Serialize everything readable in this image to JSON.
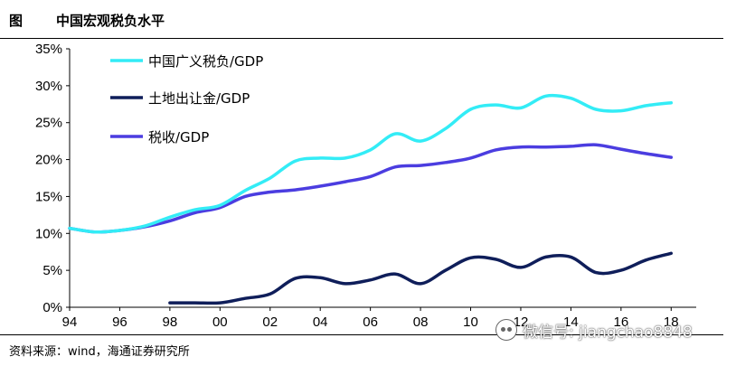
{
  "figure": {
    "label": "图",
    "title": "中国宏观税负水平",
    "source": "资料来源：wind，海通证券研究所"
  },
  "watermark": {
    "icon": "wechat-icon",
    "text": "微信号: jiangchao8848"
  },
  "chart_data": {
    "type": "line",
    "x_tick_labels": [
      "94",
      "96",
      "98",
      "00",
      "02",
      "04",
      "06",
      "08",
      "10",
      "12",
      "14",
      "16",
      "18"
    ],
    "x_ticks": [
      1994,
      1996,
      1998,
      2000,
      2002,
      2004,
      2006,
      2008,
      2010,
      2012,
      2014,
      2016,
      2018
    ],
    "xlim": [
      1994,
      2019
    ],
    "y_tick_labels": [
      "0%",
      "5%",
      "10%",
      "15%",
      "20%",
      "25%",
      "30%",
      "35%"
    ],
    "y_ticks": [
      0,
      5,
      10,
      15,
      20,
      25,
      30,
      35
    ],
    "ylim": [
      0,
      35
    ],
    "grid": false,
    "legend_position": "top-left",
    "series": [
      {
        "name": "中国广义税负/GDP",
        "color": "#33ECF6",
        "x": [
          1994,
          1995,
          1996,
          1997,
          1998,
          1999,
          2000,
          2001,
          2002,
          2003,
          2004,
          2005,
          2006,
          2007,
          2008,
          2009,
          2010,
          2011,
          2012,
          2013,
          2014,
          2015,
          2016,
          2017,
          2018
        ],
        "y": [
          10.7,
          10.2,
          10.4,
          11.0,
          12.2,
          13.2,
          13.8,
          15.8,
          17.5,
          19.8,
          20.2,
          20.2,
          21.3,
          23.5,
          22.5,
          24.2,
          26.8,
          27.4,
          27.0,
          28.6,
          28.3,
          26.8,
          26.6,
          27.3,
          27.7
        ]
      },
      {
        "name": "土地出让金/GDP",
        "color": "#0F1E5A",
        "x": [
          1998,
          1999,
          2000,
          2001,
          2002,
          2003,
          2004,
          2005,
          2006,
          2007,
          2008,
          2009,
          2010,
          2011,
          2012,
          2013,
          2014,
          2015,
          2016,
          2017,
          2018
        ],
        "y": [
          0.6,
          0.6,
          0.6,
          1.2,
          1.8,
          3.9,
          4.0,
          3.2,
          3.7,
          4.5,
          3.2,
          5.0,
          6.7,
          6.5,
          5.4,
          6.8,
          6.8,
          4.7,
          5.0,
          6.4,
          7.3
        ]
      },
      {
        "name": "税收/GDP",
        "color": "#4B3DE0",
        "x": [
          1994,
          1995,
          1996,
          1997,
          1998,
          1999,
          2000,
          2001,
          2002,
          2003,
          2004,
          2005,
          2006,
          2007,
          2008,
          2009,
          2010,
          2011,
          2012,
          2013,
          2014,
          2015,
          2016,
          2017,
          2018
        ],
        "y": [
          10.7,
          10.2,
          10.4,
          10.9,
          11.7,
          12.8,
          13.5,
          15.0,
          15.6,
          15.9,
          16.4,
          17.0,
          17.7,
          19.0,
          19.2,
          19.6,
          20.2,
          21.3,
          21.7,
          21.7,
          21.8,
          22.0,
          21.4,
          20.8,
          20.3
        ]
      }
    ]
  }
}
